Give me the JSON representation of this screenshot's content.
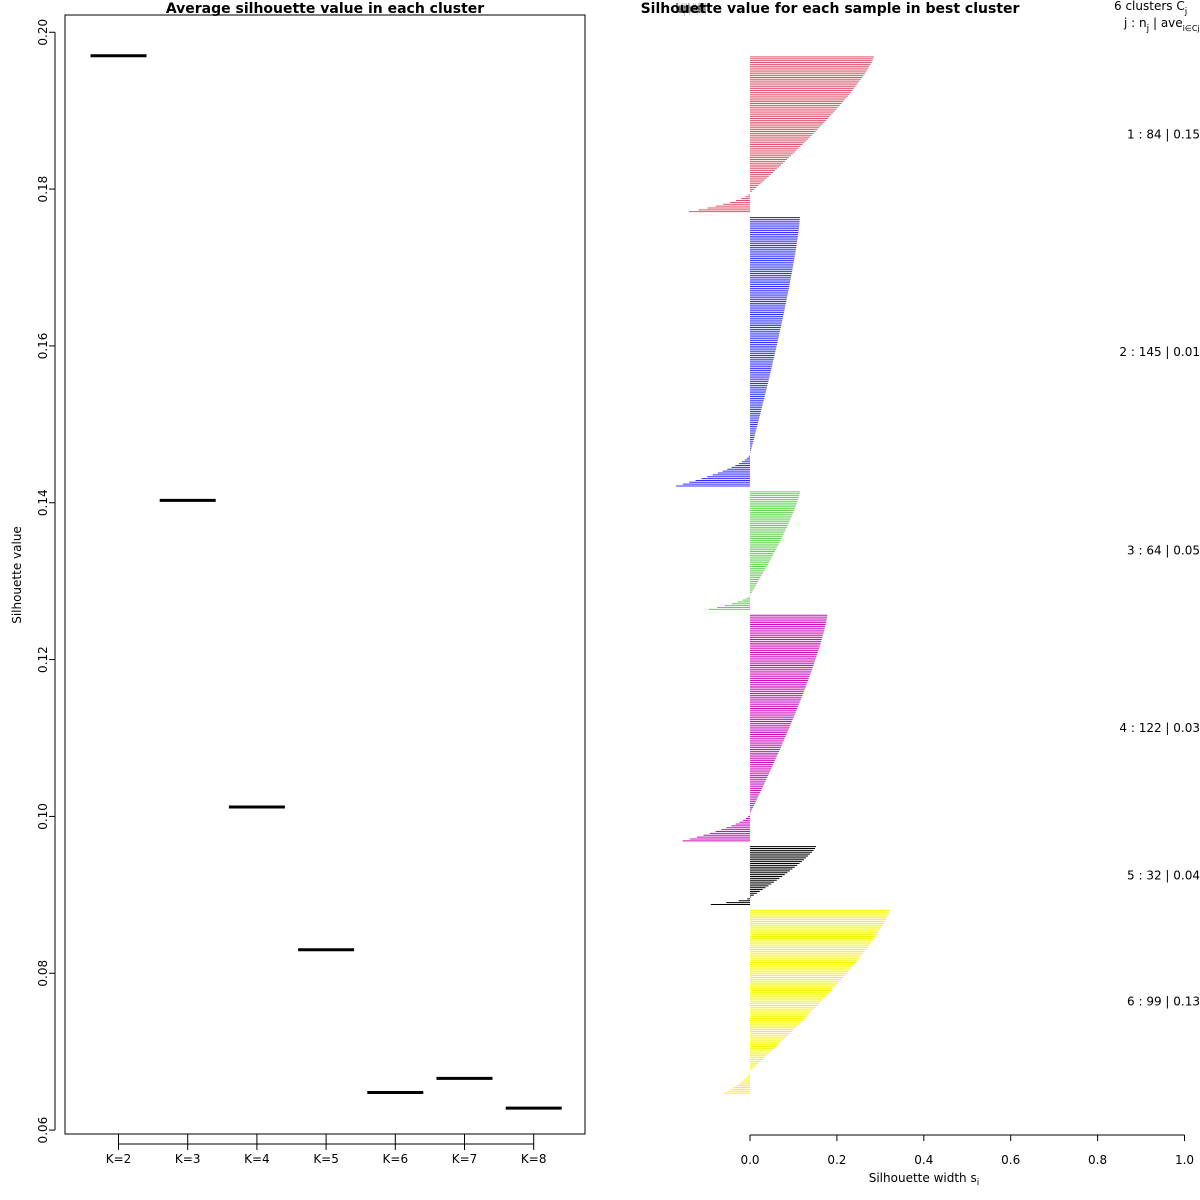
{
  "chart_data": [
    {
      "type": "line",
      "title": "Average silhouette value in each cluster",
      "xlabel": "",
      "ylabel": "Silhouette value",
      "categories": [
        "K=2",
        "K=3",
        "K=4",
        "K=5",
        "K=6",
        "K=7",
        "K=8"
      ],
      "values": [
        0.197,
        0.1403,
        0.1012,
        0.083,
        0.0648,
        0.0666,
        0.0628
      ],
      "ylim": [
        0.0595,
        0.2022
      ],
      "yticks": [
        0.06,
        0.08,
        0.1,
        0.12,
        0.14,
        0.16,
        0.18,
        0.2
      ],
      "ytick_labels": [
        "0.06",
        "0.08",
        "0.10",
        "0.12",
        "0.14",
        "0.16",
        "0.18",
        "0.20"
      ],
      "grid": false
    },
    {
      "type": "bar",
      "orientation": "horizontal",
      "title": "Silhouette value for each sample in best cluster",
      "title_overlap": "Silhouette plot of (x = cluster, dist = dist)",
      "xlabel": "Silhouette width",
      "xlabel_subscript": "i",
      "xlabel_symbol": "s",
      "xlim": [
        0.0,
        1.0
      ],
      "xticks": [
        0.0,
        0.2,
        0.4,
        0.6,
        0.8,
        1.0
      ],
      "xtick_labels": [
        "0.0",
        "0.2",
        "0.4",
        "0.6",
        "0.8",
        "1.0"
      ],
      "n_clusters_label": "6  clusters  C",
      "n_clusters_subscript": "j",
      "header_line2": "j :  n",
      "header_line2_sub": "j",
      "header_line2_rest": " | ave",
      "header_line2_sub2": "i∈Cj",
      "header_line2_tail": "  s",
      "clusters": [
        {
          "id": 1,
          "n": 84,
          "avg": "0.15",
          "label": "1 :   84  |  0.15",
          "color": "#DF536B",
          "max": 0.285,
          "min": -0.14
        },
        {
          "id": 2,
          "n": 145,
          "avg": "0.01",
          "label": "2 :  145  |  0.01",
          "color": "#2E2EFF",
          "max": 0.115,
          "min": -0.17
        },
        {
          "id": 3,
          "n": 64,
          "avg": "0.05",
          "label": "3 :   64  |  0.05",
          "color": "#61D04F",
          "max": 0.115,
          "min": -0.095
        },
        {
          "id": 4,
          "n": 122,
          "avg": "0.03",
          "label": "4 :  122  |  0.03",
          "color": "#CD0BBC",
          "max": 0.178,
          "min": -0.155
        },
        {
          "id": 5,
          "n": 32,
          "avg": "0.04",
          "label": "5 :   32  |  0.04",
          "color": "#000000",
          "max": 0.152,
          "min": -0.09
        },
        {
          "id": 6,
          "n": 99,
          "avg": "0.13",
          "label": "6 :   99  |  0.13",
          "color": "#F5F500",
          "max": 0.322,
          "min": -0.06
        }
      ]
    }
  ]
}
